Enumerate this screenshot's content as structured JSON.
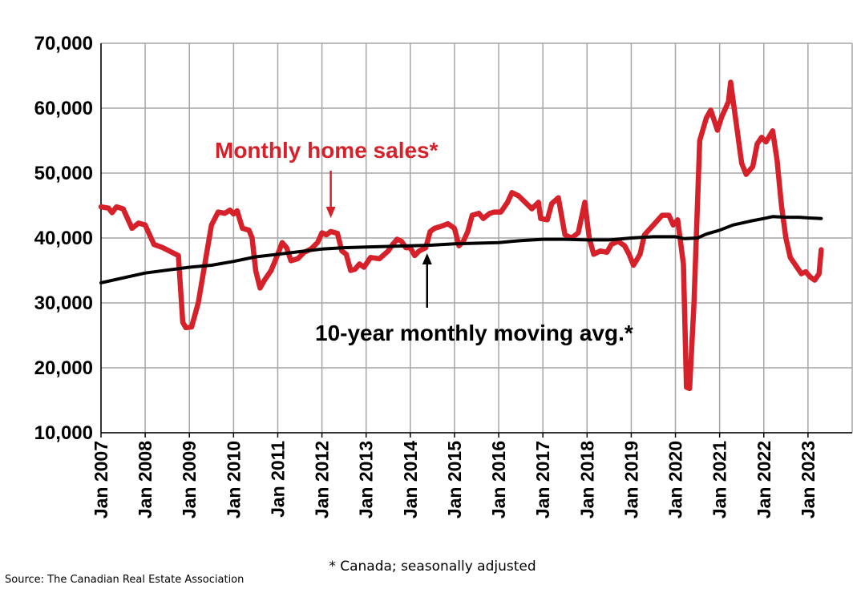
{
  "chart_data": {
    "type": "line",
    "title": "",
    "xlabel": "",
    "ylabel": "",
    "ylim": [
      10000,
      70000
    ],
    "y_ticks": [
      10000,
      20000,
      30000,
      40000,
      50000,
      60000,
      70000
    ],
    "y_tick_labels": [
      "10,000",
      "20,000",
      "30,000",
      "40,000",
      "50,000",
      "60,000",
      "70,000"
    ],
    "xlim": [
      2007.0,
      2024.0
    ],
    "x_tick_labels": [
      "Jan 2007",
      "Jan 2008",
      "Jan 2009",
      "Jan 2010",
      "Jan 2011",
      "Jan 2012",
      "Jan 2013",
      "Jan 2014",
      "Jan 2015",
      "Jan 2016",
      "Jan 2017",
      "Jan 2018",
      "Jan 2019",
      "Jan 2020",
      "Jan 2021",
      "Jan 2022",
      "Jan 2023"
    ],
    "x_tick_values": [
      2007,
      2008,
      2009,
      2010,
      2011,
      2012,
      2013,
      2014,
      2015,
      2016,
      2017,
      2018,
      2019,
      2020,
      2021,
      2022,
      2023
    ],
    "grid": true,
    "series": [
      {
        "name": "Monthly home sales*",
        "color": "#d6202a",
        "points": [
          [
            2007.0,
            44800
          ],
          [
            2007.17,
            44600
          ],
          [
            2007.25,
            43900
          ],
          [
            2007.35,
            44800
          ],
          [
            2007.5,
            44500
          ],
          [
            2007.7,
            41500
          ],
          [
            2007.85,
            42300
          ],
          [
            2008.0,
            42000
          ],
          [
            2008.2,
            39000
          ],
          [
            2008.4,
            38500
          ],
          [
            2008.6,
            37800
          ],
          [
            2008.75,
            37300
          ],
          [
            2008.85,
            27000
          ],
          [
            2008.92,
            26200
          ],
          [
            2009.05,
            26300
          ],
          [
            2009.2,
            30000
          ],
          [
            2009.35,
            36000
          ],
          [
            2009.5,
            42000
          ],
          [
            2009.65,
            44000
          ],
          [
            2009.8,
            43800
          ],
          [
            2009.92,
            44300
          ],
          [
            2010.0,
            43700
          ],
          [
            2010.08,
            44200
          ],
          [
            2010.2,
            41500
          ],
          [
            2010.35,
            41200
          ],
          [
            2010.42,
            40000
          ],
          [
            2010.5,
            35000
          ],
          [
            2010.6,
            32300
          ],
          [
            2010.7,
            33500
          ],
          [
            2010.85,
            35000
          ],
          [
            2011.0,
            37500
          ],
          [
            2011.1,
            39300
          ],
          [
            2011.2,
            38500
          ],
          [
            2011.3,
            36500
          ],
          [
            2011.45,
            36800
          ],
          [
            2011.6,
            37800
          ],
          [
            2011.75,
            38300
          ],
          [
            2011.9,
            39300
          ],
          [
            2012.0,
            40800
          ],
          [
            2012.1,
            40500
          ],
          [
            2012.2,
            41000
          ],
          [
            2012.35,
            40700
          ],
          [
            2012.45,
            38000
          ],
          [
            2012.55,
            37500
          ],
          [
            2012.65,
            35000
          ],
          [
            2012.75,
            35200
          ],
          [
            2012.85,
            36000
          ],
          [
            2012.95,
            35500
          ],
          [
            2013.1,
            37000
          ],
          [
            2013.3,
            36800
          ],
          [
            2013.5,
            38000
          ],
          [
            2013.6,
            39000
          ],
          [
            2013.7,
            39800
          ],
          [
            2013.8,
            39500
          ],
          [
            2013.9,
            38500
          ],
          [
            2014.0,
            38500
          ],
          [
            2014.1,
            37300
          ],
          [
            2014.2,
            38000
          ],
          [
            2014.35,
            38500
          ],
          [
            2014.45,
            41000
          ],
          [
            2014.55,
            41500
          ],
          [
            2014.7,
            41800
          ],
          [
            2014.85,
            42200
          ],
          [
            2015.0,
            41500
          ],
          [
            2015.1,
            38800
          ],
          [
            2015.2,
            39500
          ],
          [
            2015.3,
            41000
          ],
          [
            2015.4,
            43500
          ],
          [
            2015.55,
            43800
          ],
          [
            2015.65,
            43000
          ],
          [
            2015.8,
            43800
          ],
          [
            2015.9,
            44000
          ],
          [
            2016.05,
            44000
          ],
          [
            2016.2,
            45500
          ],
          [
            2016.3,
            47000
          ],
          [
            2016.45,
            46500
          ],
          [
            2016.6,
            45500
          ],
          [
            2016.75,
            44500
          ],
          [
            2016.9,
            45500
          ],
          [
            2016.95,
            43000
          ],
          [
            2017.1,
            42800
          ],
          [
            2017.2,
            45300
          ],
          [
            2017.35,
            46200
          ],
          [
            2017.5,
            40500
          ],
          [
            2017.65,
            40000
          ],
          [
            2017.8,
            40800
          ],
          [
            2017.95,
            45500
          ],
          [
            2018.05,
            40000
          ],
          [
            2018.15,
            37500
          ],
          [
            2018.3,
            38000
          ],
          [
            2018.45,
            37800
          ],
          [
            2018.55,
            39000
          ],
          [
            2018.7,
            39500
          ],
          [
            2018.85,
            38800
          ],
          [
            2018.95,
            37500
          ],
          [
            2019.05,
            35800
          ],
          [
            2019.2,
            37500
          ],
          [
            2019.3,
            40500
          ],
          [
            2019.5,
            42000
          ],
          [
            2019.7,
            43500
          ],
          [
            2019.85,
            43500
          ],
          [
            2019.95,
            42000
          ],
          [
            2020.05,
            42800
          ],
          [
            2020.18,
            36000
          ],
          [
            2020.25,
            17000
          ],
          [
            2020.32,
            16800
          ],
          [
            2020.42,
            30000
          ],
          [
            2020.55,
            55000
          ],
          [
            2020.7,
            58500
          ],
          [
            2020.8,
            59700
          ],
          [
            2020.95,
            56600
          ],
          [
            2021.05,
            58700
          ],
          [
            2021.2,
            61000
          ],
          [
            2021.25,
            64000
          ],
          [
            2021.35,
            59000
          ],
          [
            2021.5,
            51500
          ],
          [
            2021.6,
            49800
          ],
          [
            2021.75,
            51000
          ],
          [
            2021.85,
            54500
          ],
          [
            2021.95,
            55500
          ],
          [
            2022.05,
            54800
          ],
          [
            2022.2,
            56500
          ],
          [
            2022.3,
            52000
          ],
          [
            2022.4,
            45000
          ],
          [
            2022.5,
            40000
          ],
          [
            2022.6,
            37000
          ],
          [
            2022.75,
            35500
          ],
          [
            2022.85,
            34500
          ],
          [
            2022.95,
            34800
          ],
          [
            2023.05,
            34000
          ],
          [
            2023.15,
            33500
          ],
          [
            2023.25,
            34500
          ],
          [
            2023.3,
            38200
          ]
        ]
      },
      {
        "name": "10-year monthly moving avg.*",
        "color": "#000000",
        "points": [
          [
            2007.0,
            33100
          ],
          [
            2008.0,
            34600
          ],
          [
            2009.0,
            35500
          ],
          [
            2009.5,
            35800
          ],
          [
            2010.0,
            36400
          ],
          [
            2010.5,
            37100
          ],
          [
            2011.0,
            37500
          ],
          [
            2011.5,
            37900
          ],
          [
            2012.0,
            38300
          ],
          [
            2012.5,
            38500
          ],
          [
            2013.0,
            38600
          ],
          [
            2013.5,
            38700
          ],
          [
            2014.0,
            38800
          ],
          [
            2014.5,
            38900
          ],
          [
            2015.0,
            39100
          ],
          [
            2015.5,
            39200
          ],
          [
            2016.0,
            39300
          ],
          [
            2016.5,
            39600
          ],
          [
            2017.0,
            39800
          ],
          [
            2017.5,
            39800
          ],
          [
            2018.0,
            39700
          ],
          [
            2018.5,
            39700
          ],
          [
            2019.0,
            40000
          ],
          [
            2019.5,
            40200
          ],
          [
            2020.0,
            40200
          ],
          [
            2020.2,
            39900
          ],
          [
            2020.5,
            40000
          ],
          [
            2020.7,
            40600
          ],
          [
            2021.0,
            41200
          ],
          [
            2021.3,
            42000
          ],
          [
            2021.7,
            42600
          ],
          [
            2022.0,
            43000
          ],
          [
            2022.2,
            43300
          ],
          [
            2022.5,
            43200
          ],
          [
            2022.8,
            43200
          ],
          [
            2023.0,
            43100
          ],
          [
            2023.3,
            43000
          ]
        ]
      }
    ],
    "annotations": [
      {
        "text": "Monthly home sales*",
        "color": "#d6202a",
        "x": 2012.2,
        "y": 51200
      },
      {
        "text": "10-year monthly moving avg.*",
        "color": "#000000",
        "x": 2014.38,
        "y": 27400
      }
    ]
  },
  "footnote": "* Canada; seasonally adjusted",
  "source": "Source: The Canadian Real Estate Association"
}
